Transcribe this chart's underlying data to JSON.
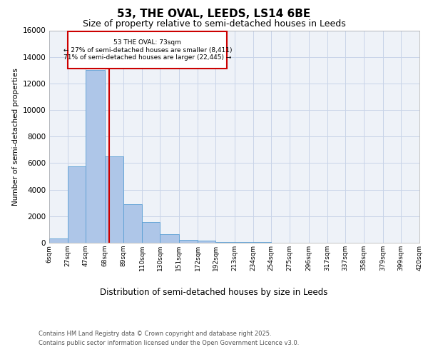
{
  "title": "53, THE OVAL, LEEDS, LS14 6BE",
  "subtitle": "Size of property relative to semi-detached houses in Leeds",
  "xlabel": "Distribution of semi-detached houses by size in Leeds",
  "ylabel": "Number of semi-detached properties",
  "property_size": 73,
  "annotation_text_line1": "53 THE OVAL: 73sqm",
  "annotation_text_line2": "← 27% of semi-detached houses are smaller (8,411)",
  "annotation_text_line3": "71% of semi-detached houses are larger (22,445) →",
  "footer_line1": "Contains HM Land Registry data © Crown copyright and database right 2025.",
  "footer_line2": "Contains public sector information licensed under the Open Government Licence v3.0.",
  "bin_labels": [
    "6sqm",
    "27sqm",
    "47sqm",
    "68sqm",
    "89sqm",
    "110sqm",
    "130sqm",
    "151sqm",
    "172sqm",
    "192sqm",
    "213sqm",
    "234sqm",
    "254sqm",
    "275sqm",
    "296sqm",
    "317sqm",
    "337sqm",
    "358sqm",
    "379sqm",
    "399sqm",
    "420sqm"
  ],
  "bin_edges": [
    6,
    27,
    47,
    68,
    89,
    110,
    130,
    151,
    172,
    192,
    213,
    234,
    254,
    275,
    296,
    317,
    337,
    358,
    379,
    399,
    420
  ],
  "bar_values": [
    300,
    5750,
    13000,
    6500,
    2900,
    1550,
    650,
    200,
    150,
    80,
    50,
    30,
    10,
    5,
    3,
    2,
    1,
    1,
    0,
    0
  ],
  "bar_color": "#aec6e8",
  "bar_edge_color": "#5a9fd4",
  "red_line_color": "#cc0000",
  "annotation_box_color": "#cc0000",
  "grid_color": "#c8d4e8",
  "bg_color": "#eef2f8",
  "ylim": [
    0,
    16000
  ],
  "yticks": [
    0,
    2000,
    4000,
    6000,
    8000,
    10000,
    12000,
    14000,
    16000
  ],
  "title_fontsize": 11,
  "subtitle_fontsize": 9
}
